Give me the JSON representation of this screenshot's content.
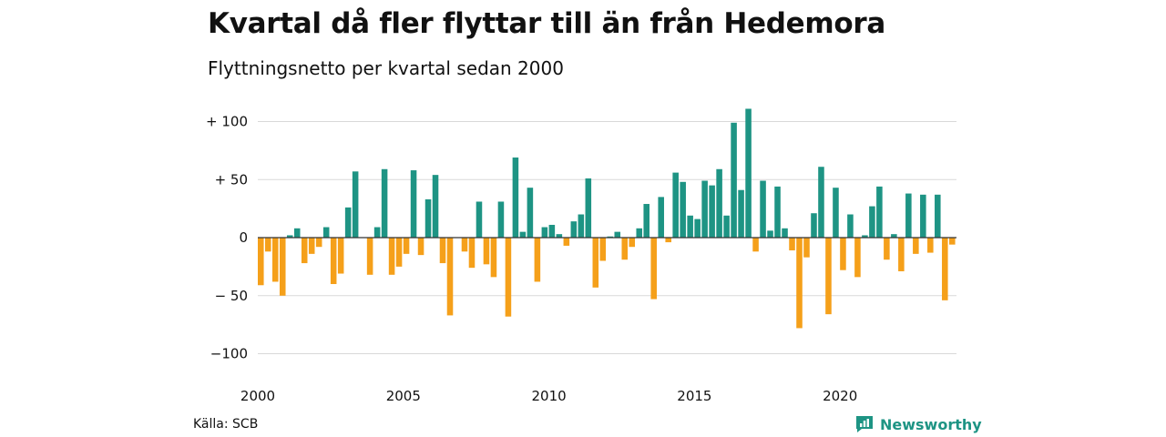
{
  "chart_data": {
    "type": "bar",
    "title": "Kvartal då fler flyttar till än från Hedemora",
    "subtitle": "Flyttningsnetto per kvartal sedan 2000",
    "xlabel": "",
    "ylabel": "",
    "ylim": [
      -110,
      115
    ],
    "y_ticks": [
      {
        "value": 100,
        "label": "+ 100"
      },
      {
        "value": 50,
        "label": "+  50"
      },
      {
        "value": 0,
        "label": "0"
      },
      {
        "value": -50,
        "label": "− 50"
      },
      {
        "value": -100,
        "label": "−100"
      }
    ],
    "x_ticks": [
      {
        "index": 0,
        "label": "2000"
      },
      {
        "index": 20,
        "label": "2005"
      },
      {
        "index": 40,
        "label": "2010"
      },
      {
        "index": 60,
        "label": "2015"
      },
      {
        "index": 80,
        "label": "2020"
      }
    ],
    "grid": true,
    "positive_color": "#1e9484",
    "negative_color": "#f5a01a",
    "first_quarter": "2000 Q1",
    "values": [
      -41,
      -12,
      -38,
      -50,
      2,
      8,
      -22,
      -14,
      -8,
      9,
      -40,
      -31,
      26,
      57,
      0,
      -32,
      9,
      59,
      -32,
      -25,
      -14,
      58,
      -15,
      33,
      54,
      -22,
      -67,
      0,
      -12,
      -26,
      31,
      -23,
      -34,
      31,
      -68,
      69,
      5,
      43,
      -38,
      9,
      11,
      3,
      -7,
      14,
      20,
      51,
      -43,
      -20,
      1,
      5,
      -19,
      -8,
      8,
      29,
      -53,
      35,
      -4,
      56,
      48,
      19,
      16,
      49,
      45,
      59,
      19,
      99,
      41,
      111,
      -12,
      49,
      6,
      44,
      8,
      -11,
      -78,
      -17,
      21,
      61,
      -66,
      43,
      -28,
      20,
      -34,
      2,
      27,
      44,
      -19,
      3,
      -29,
      38,
      -14,
      37,
      -13,
      37,
      -54,
      -6
    ]
  },
  "footer": {
    "source": "Källa: SCB",
    "brand": "Newsworthy"
  },
  "colors": {
    "brand": "#1e9484",
    "gridline": "#d9d9d9",
    "zero_line": "#333333"
  }
}
